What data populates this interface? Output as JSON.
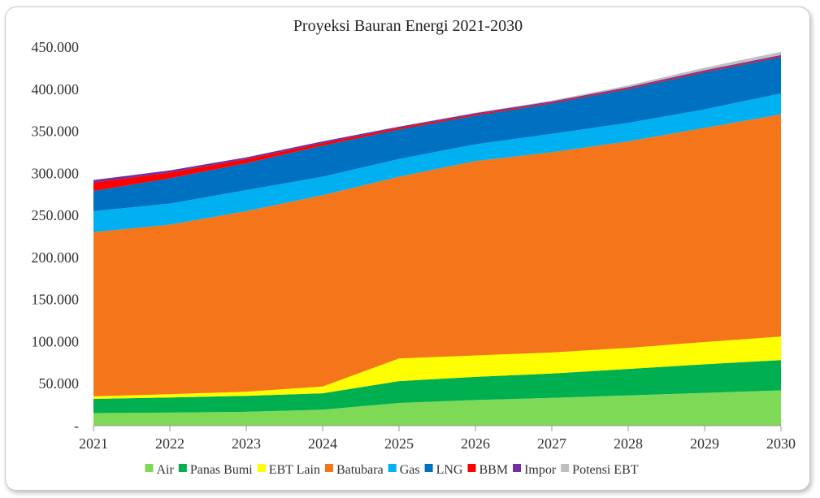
{
  "chart_data": {
    "type": "area",
    "stacked": true,
    "title": "Proyeksi Bauran Energi 2021-2030",
    "xlabel": "",
    "ylabel": "",
    "ylim": [
      0,
      450000
    ],
    "y_ticks": [
      {
        "value": 0,
        "label": "-"
      },
      {
        "value": 50000,
        "label": "50.000"
      },
      {
        "value": 100000,
        "label": "100.000"
      },
      {
        "value": 150000,
        "label": "150.000"
      },
      {
        "value": 200000,
        "label": "200.000"
      },
      {
        "value": 250000,
        "label": "250.000"
      },
      {
        "value": 300000,
        "label": "300.000"
      },
      {
        "value": 350000,
        "label": "350.000"
      },
      {
        "value": 400000,
        "label": "400.000"
      },
      {
        "value": 450000,
        "label": "450.000"
      }
    ],
    "categories": [
      "2021",
      "2022",
      "2023",
      "2024",
      "2025",
      "2026",
      "2027",
      "2028",
      "2029",
      "2030"
    ],
    "legend_position": "bottom",
    "grid": false,
    "series": [
      {
        "name": "Air",
        "color": "#7ed957",
        "values": [
          15000,
          15500,
          16500,
          19000,
          27000,
          30500,
          33000,
          36000,
          39000,
          42000
        ]
      },
      {
        "name": "Panas Bumi",
        "color": "#00b050",
        "values": [
          17000,
          18000,
          19000,
          19500,
          26000,
          27500,
          29000,
          31500,
          34000,
          36000
        ]
      },
      {
        "name": "EBT Lain",
        "color": "#ffff00",
        "values": [
          3000,
          4000,
          5000,
          8000,
          27000,
          25500,
          25000,
          25000,
          26500,
          28000
        ]
      },
      {
        "name": "Batubara",
        "color": "#f5761a",
        "values": [
          195000,
          201500,
          214500,
          227500,
          216000,
          231000,
          238000,
          245500,
          254500,
          264000
        ]
      },
      {
        "name": "Gas",
        "color": "#00b0f0",
        "values": [
          25000,
          25000,
          25000,
          22000,
          21000,
          20000,
          22000,
          22000,
          22000,
          25000
        ]
      },
      {
        "name": "LNG",
        "color": "#0070c0",
        "values": [
          24000,
          30000,
          32000,
          37000,
          35000,
          34000,
          36000,
          40000,
          44000,
          43000
        ]
      },
      {
        "name": "BBM",
        "color": "#ff0000",
        "values": [
          10000,
          7000,
          5000,
          3000,
          2000,
          1500,
          1000,
          1000,
          1000,
          1000
        ]
      },
      {
        "name": "Impor",
        "color": "#7030a0",
        "values": [
          3000,
          2500,
          2000,
          2000,
          1500,
          1500,
          1500,
          1500,
          1500,
          1500
        ]
      },
      {
        "name": "Potensi EBT",
        "color": "#bfbfbf",
        "values": [
          0,
          0,
          0,
          0,
          0,
          500,
          1000,
          2000,
          3000,
          4000
        ]
      }
    ]
  }
}
